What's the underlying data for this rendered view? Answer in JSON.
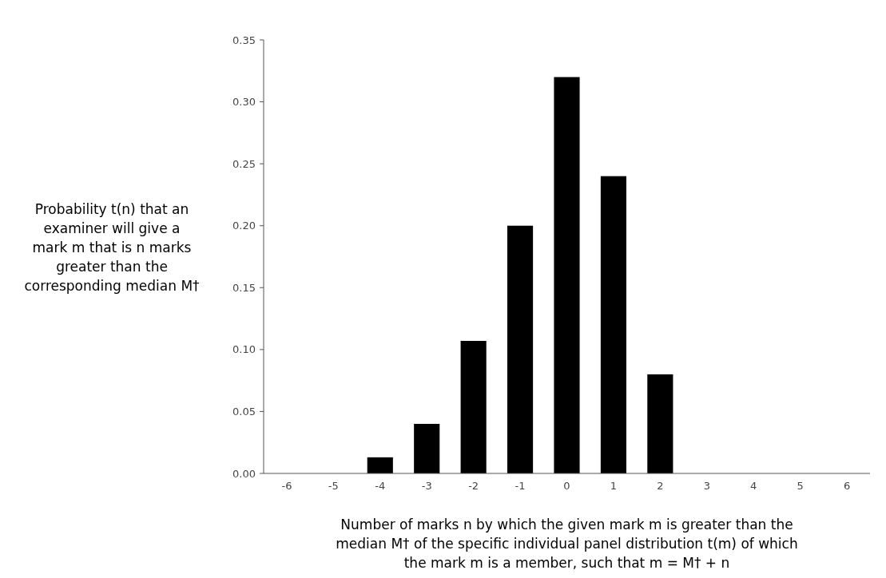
{
  "chart_data": {
    "type": "bar",
    "xlabel": "Number of marks n by which the given mark m  is greater than the median M† of the specific individual panel distribution t(m) of which the mark m is a member, such that m = M† + n",
    "ylabel": "Probability t(n) that an examiner will give a mark m that is n marks greater than the corresponding median M†",
    "categories": [
      "-6",
      "-5",
      "-4",
      "-3",
      "-2",
      "-1",
      "0",
      "1",
      "2",
      "3",
      "4",
      "5",
      "6"
    ],
    "values": [
      0,
      0,
      0.013,
      0.04,
      0.107,
      0.2,
      0.32,
      0.24,
      0.08,
      0,
      0,
      0,
      0
    ],
    "color": "#000000",
    "ylim": [
      0,
      0.35
    ],
    "yticks": [
      {
        "value": 0,
        "label": "0.00"
      },
      {
        "value": 0.05,
        "label": "0.05"
      },
      {
        "value": 0.1,
        "label": "0.10"
      },
      {
        "value": 0.15,
        "label": "0.15"
      },
      {
        "value": 0.2,
        "label": "0.20"
      },
      {
        "value": 0.25,
        "label": "0.25"
      },
      {
        "value": 0.3,
        "label": "0.30"
      },
      {
        "value": 0.35,
        "label": "0.35"
      }
    ],
    "grid": false
  }
}
